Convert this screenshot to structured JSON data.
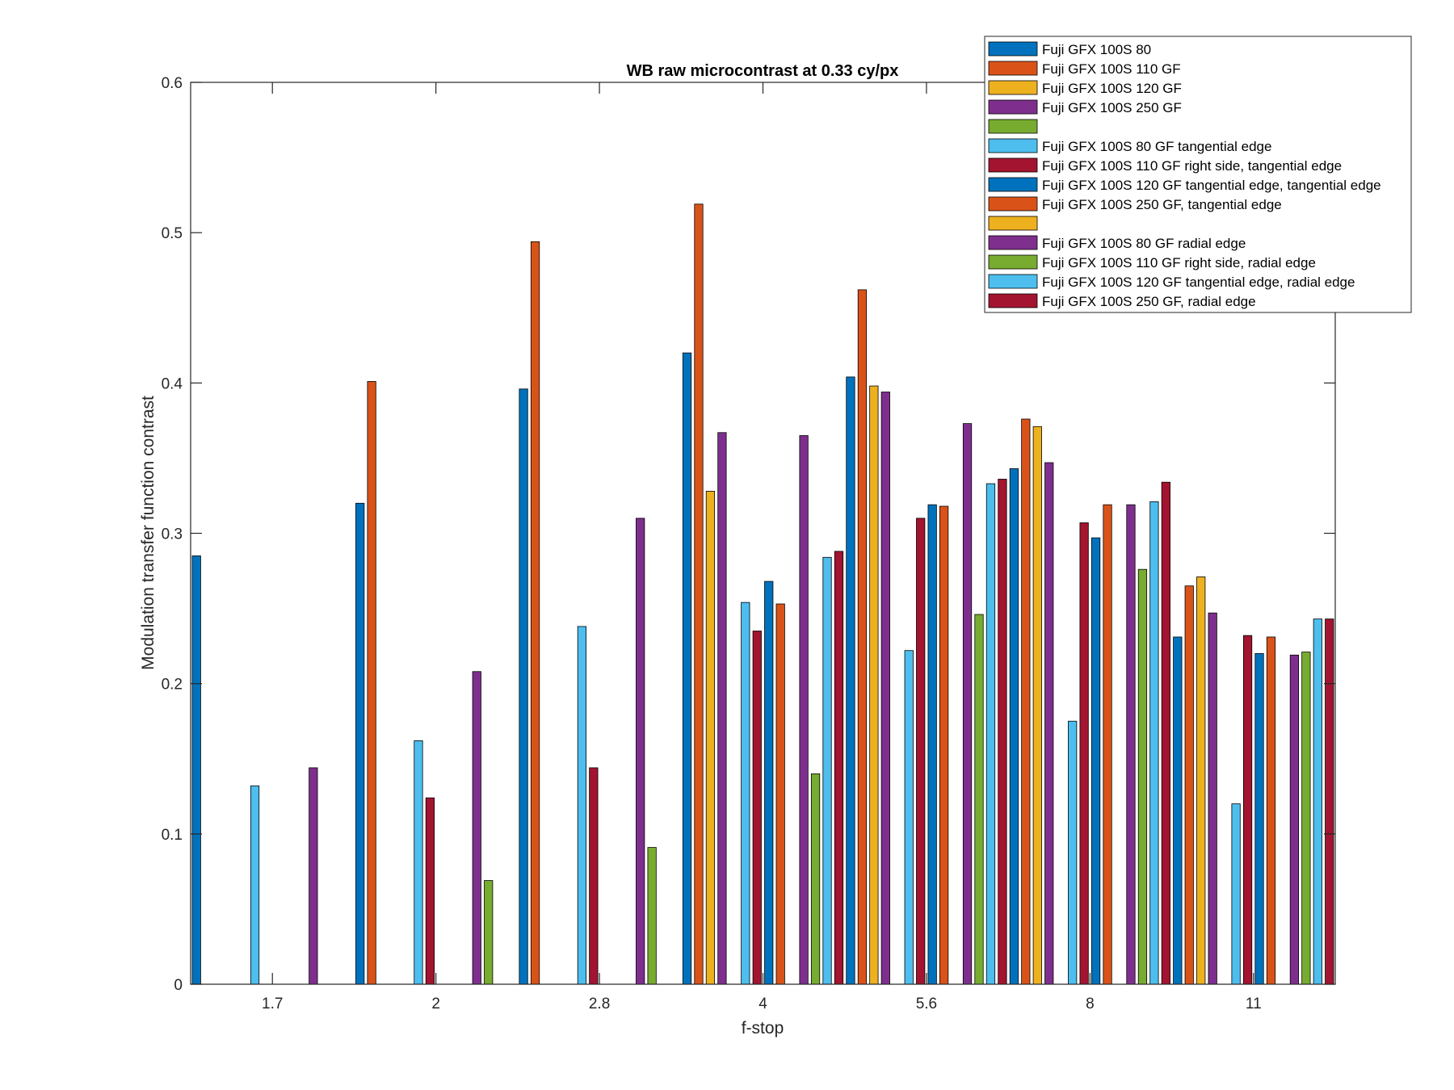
{
  "chart_data": {
    "type": "bar",
    "title": "WB raw  microcontrast at 0.33 cy/px",
    "xlabel": "f-stop",
    "ylabel": "Modulation transfer function contrast",
    "ylim": [
      0,
      0.6
    ],
    "yticks": [
      "0",
      "0.1",
      "0.2",
      "0.3",
      "0.4",
      "0.5",
      "0.6"
    ],
    "categories": [
      "1.7",
      "2",
      "2.8",
      "4",
      "5.6",
      "8",
      "11"
    ],
    "grid": false,
    "legend_position": "top-right",
    "series": [
      {
        "name": "Fuji GFX 100S 80",
        "color": "#0072BD",
        "values": [
          0.285,
          0.32,
          0.396,
          0.42,
          0.404,
          0.343,
          0.231
        ]
      },
      {
        "name": "Fuji GFX 100S 110 GF",
        "color": "#D95319",
        "values": [
          null,
          0.401,
          0.494,
          0.519,
          0.462,
          0.376,
          0.265
        ]
      },
      {
        "name": "Fuji GFX 100S 120 GF",
        "color": "#EDB120",
        "values": [
          null,
          null,
          null,
          0.328,
          0.398,
          0.371,
          0.271
        ]
      },
      {
        "name": "Fuji GFX 100S 250 GF",
        "color": "#7E2F8E",
        "values": [
          null,
          null,
          null,
          0.367,
          0.394,
          0.347,
          0.247
        ]
      },
      {
        "name": "",
        "color": "#77AC30",
        "values": [
          null,
          null,
          null,
          null,
          null,
          null,
          null
        ]
      },
      {
        "name": "Fuji GFX 100S 80 GF tangential edge",
        "color": "#4DBEEE",
        "values": [
          0.132,
          0.162,
          0.238,
          0.254,
          0.222,
          0.175,
          0.12
        ]
      },
      {
        "name": "Fuji GFX 100S 110 GF right side, tangential edge",
        "color": "#A2142F",
        "values": [
          null,
          0.124,
          0.144,
          0.235,
          0.31,
          0.307,
          0.232
        ]
      },
      {
        "name": "Fuji GFX 100S 120 GF tangential edge, tangential edge",
        "color": "#0072BD",
        "values": [
          null,
          null,
          null,
          0.268,
          0.319,
          0.297,
          0.22
        ]
      },
      {
        "name": "Fuji GFX 100S 250 GF, tangential edge",
        "color": "#D95319",
        "values": [
          null,
          null,
          null,
          0.253,
          0.318,
          0.319,
          0.231
        ]
      },
      {
        "name": "",
        "color": "#EDB120",
        "values": [
          null,
          null,
          null,
          null,
          null,
          null,
          null
        ]
      },
      {
        "name": "Fuji GFX 100S 80 GF radial edge",
        "color": "#7E2F8E",
        "values": [
          0.144,
          0.208,
          0.31,
          0.365,
          0.373,
          0.319,
          0.219
        ]
      },
      {
        "name": "Fuji GFX 100S 110 GF right side, radial edge",
        "color": "#77AC30",
        "values": [
          null,
          0.069,
          0.091,
          0.14,
          0.246,
          0.276,
          0.221
        ]
      },
      {
        "name": "Fuji GFX 100S 120 GF tangential edge, radial edge",
        "color": "#4DBEEE",
        "values": [
          null,
          null,
          null,
          0.284,
          0.333,
          0.321,
          0.243
        ]
      },
      {
        "name": "Fuji GFX 100S 250 GF, radial edge",
        "color": "#A2142F",
        "values": [
          null,
          null,
          null,
          0.288,
          0.336,
          0.334,
          0.243
        ]
      }
    ]
  }
}
